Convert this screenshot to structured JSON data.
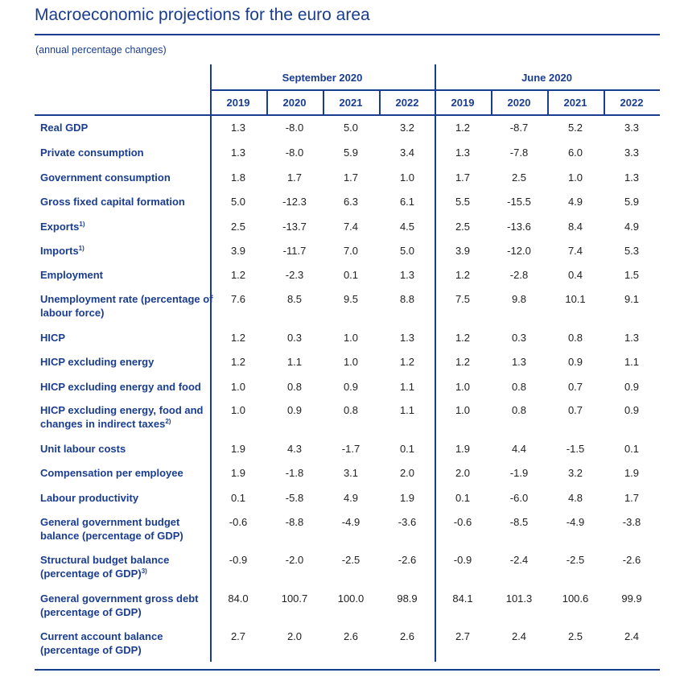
{
  "title": "Macroeconomic projections for the euro area",
  "subtitle": "(annual percentage changes)",
  "groups": [
    {
      "label": "September 2020",
      "years": [
        "2019",
        "2020",
        "2021",
        "2022"
      ]
    },
    {
      "label": "June 2020",
      "years": [
        "2019",
        "2020",
        "2021",
        "2022"
      ]
    }
  ],
  "rows": [
    {
      "label": "Real GDP",
      "sup": "",
      "values": [
        "1.3",
        "-8.0",
        "5.0",
        "3.2",
        "1.2",
        "-8.7",
        "5.2",
        "3.3"
      ]
    },
    {
      "label": "Private consumption",
      "sup": "",
      "values": [
        "1.3",
        "-8.0",
        "5.9",
        "3.4",
        "1.3",
        "-7.8",
        "6.0",
        "3.3"
      ]
    },
    {
      "label": "Government consumption",
      "sup": "",
      "values": [
        "1.8",
        "1.7",
        "1.7",
        "1.0",
        "1.7",
        "2.5",
        "1.0",
        "1.3"
      ]
    },
    {
      "label": "Gross fixed capital formation",
      "sup": "",
      "values": [
        "5.0",
        "-12.3",
        "6.3",
        "6.1",
        "5.5",
        "-15.5",
        "4.9",
        "5.9"
      ]
    },
    {
      "label": "Exports",
      "sup": "1)",
      "values": [
        "2.5",
        "-13.7",
        "7.4",
        "4.5",
        "2.5",
        "-13.6",
        "8.4",
        "4.9"
      ]
    },
    {
      "label": "Imports",
      "sup": "1)",
      "values": [
        "3.9",
        "-11.7",
        "7.0",
        "5.0",
        "3.9",
        "-12.0",
        "7.4",
        "5.3"
      ]
    },
    {
      "label": "Employment",
      "sup": "",
      "values": [
        "1.2",
        "-2.3",
        "0.1",
        "1.3",
        "1.2",
        "-2.8",
        "0.4",
        "1.5"
      ]
    },
    {
      "label": "Unemployment rate (percentage of labour force)",
      "sup": "",
      "values": [
        "7.6",
        "8.5",
        "9.5",
        "8.8",
        "7.5",
        "9.8",
        "10.1",
        "9.1"
      ]
    },
    {
      "label": "HICP",
      "sup": "",
      "values": [
        "1.2",
        "0.3",
        "1.0",
        "1.3",
        "1.2",
        "0.3",
        "0.8",
        "1.3"
      ]
    },
    {
      "label": "HICP excluding energy",
      "sup": "",
      "values": [
        "1.2",
        "1.1",
        "1.0",
        "1.2",
        "1.2",
        "1.3",
        "0.9",
        "1.1"
      ]
    },
    {
      "label": "HICP excluding energy and food",
      "sup": "",
      "values": [
        "1.0",
        "0.8",
        "0.9",
        "1.1",
        "1.0",
        "0.8",
        "0.7",
        "0.9"
      ]
    },
    {
      "label": "HICP excluding energy, food and changes in indirect taxes",
      "sup": "2)",
      "values": [
        "1.0",
        "0.9",
        "0.8",
        "1.1",
        "1.0",
        "0.8",
        "0.7",
        "0.9"
      ]
    },
    {
      "label": "Unit labour costs",
      "sup": "",
      "values": [
        "1.9",
        "4.3",
        "-1.7",
        "0.1",
        "1.9",
        "4.4",
        "-1.5",
        "0.1"
      ]
    },
    {
      "label": "Compensation per employee",
      "sup": "",
      "values": [
        "1.9",
        "-1.8",
        "3.1",
        "2.0",
        "2.0",
        "-1.9",
        "3.2",
        "1.9"
      ]
    },
    {
      "label": "Labour productivity",
      "sup": "",
      "values": [
        "0.1",
        "-5.8",
        "4.9",
        "1.9",
        "0.1",
        "-6.0",
        "4.8",
        "1.7"
      ]
    },
    {
      "label": "General government budget balance (percentage of GDP)",
      "sup": "",
      "values": [
        "-0.6",
        "-8.8",
        "-4.9",
        "-3.6",
        "-0.6",
        "-8.5",
        "-4.9",
        "-3.8"
      ]
    },
    {
      "label": "Structural budget balance (percentage of GDP)",
      "sup": "3)",
      "values": [
        "-0.9",
        "-2.0",
        "-2.5",
        "-2.6",
        "-0.9",
        "-2.4",
        "-2.5",
        "-2.6"
      ]
    },
    {
      "label": "General government gross debt (percentage of GDP)",
      "sup": "",
      "values": [
        "84.0",
        "100.7",
        "100.0",
        "98.9",
        "84.1",
        "101.3",
        "100.6",
        "99.9"
      ]
    },
    {
      "label": "Current account balance (percentage of GDP)",
      "sup": "",
      "values": [
        "2.7",
        "2.0",
        "2.6",
        "2.6",
        "2.7",
        "2.4",
        "2.5",
        "2.4"
      ]
    }
  ]
}
